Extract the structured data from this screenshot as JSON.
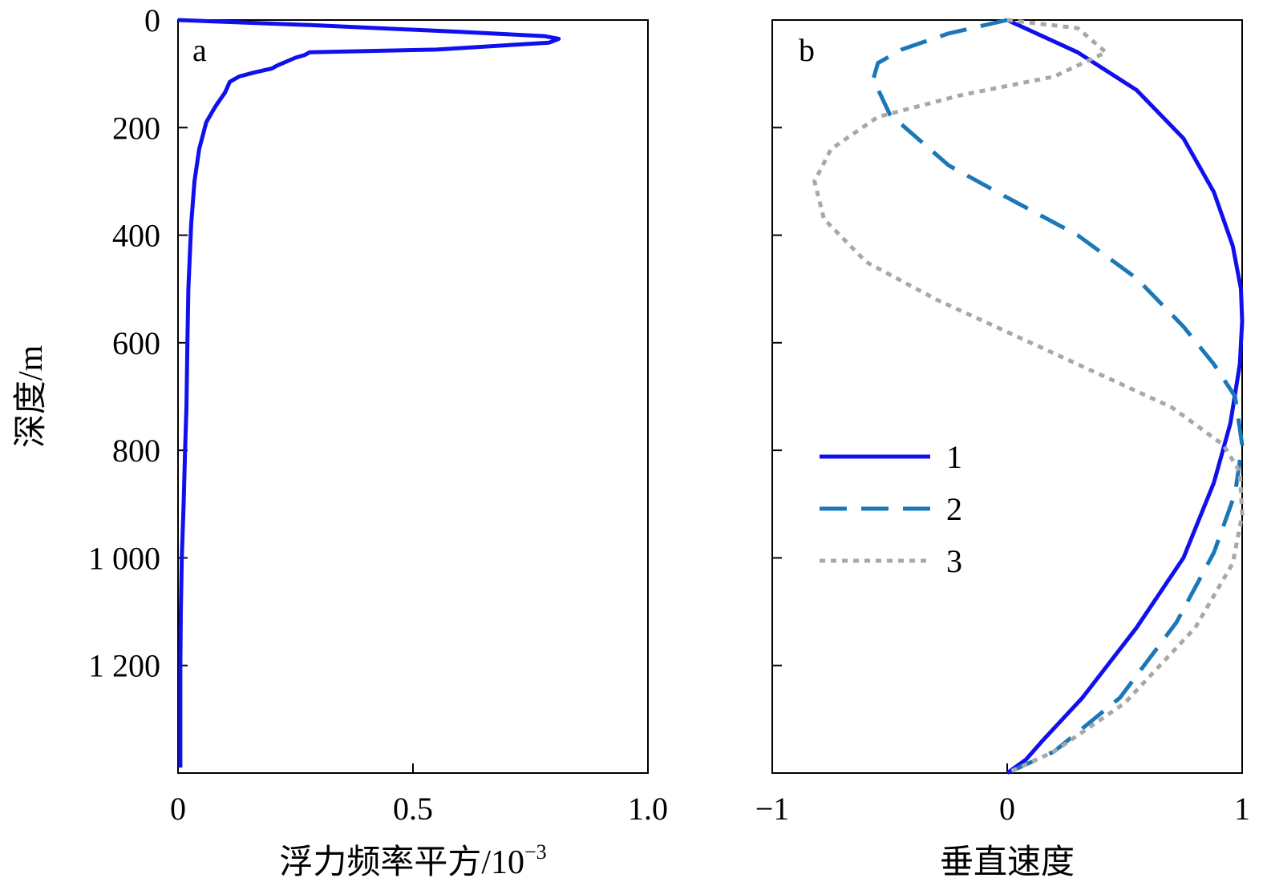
{
  "chart_data": [
    {
      "type": "line",
      "panel_label": "a",
      "ylabel": "深度/m",
      "xlabel": "浮力频率平方/10",
      "xlabel_exponent": "−3",
      "xlim": [
        0,
        1.0
      ],
      "ylim": [
        1400,
        0
      ],
      "y_inverted": true,
      "xticks": [
        0,
        0.5,
        1.0
      ],
      "xtick_labels": [
        "0",
        "0.5",
        "1.0"
      ],
      "yticks": [
        0,
        200,
        400,
        600,
        800,
        1000,
        1200
      ],
      "ytick_labels": [
        "0",
        "200",
        "400",
        "600",
        "800",
        "1 000",
        "1 200"
      ],
      "grid": false,
      "color": "#1010ee",
      "series": [
        {
          "x": [
            0.0,
            0.3,
            0.6,
            0.78,
            0.81,
            0.79,
            0.55,
            0.28,
            0.27,
            0.25,
            0.21,
            0.2,
            0.16,
            0.13,
            0.11,
            0.1,
            0.08,
            0.06,
            0.045,
            0.035,
            0.028,
            0.022,
            0.02,
            0.018,
            0.015,
            0.012,
            0.008,
            0.006,
            0.005,
            0.005
          ],
          "y": [
            0,
            10,
            22,
            30,
            35,
            42,
            55,
            60,
            65,
            70,
            85,
            90,
            98,
            105,
            115,
            135,
            160,
            190,
            240,
            300,
            380,
            500,
            600,
            720,
            800,
            900,
            1000,
            1100,
            1200,
            1390
          ]
        }
      ]
    },
    {
      "type": "line",
      "panel_label": "b",
      "xlabel": "垂直速度",
      "xlim": [
        -1,
        1
      ],
      "ylim": [
        1400,
        0
      ],
      "y_inverted": true,
      "xticks": [
        -1,
        0,
        1
      ],
      "xtick_labels": [
        "−1",
        "0",
        "1"
      ],
      "yticks": [
        0,
        200,
        400,
        600,
        800,
        1000,
        1200
      ],
      "grid": false,
      "legend_position": "center-left",
      "series": [
        {
          "name": "1",
          "color": "#1010ee",
          "style": "solid",
          "x": [
            0.0,
            0.3,
            0.55,
            0.75,
            0.88,
            0.96,
            0.995,
            1.0,
            0.99,
            0.95,
            0.88,
            0.75,
            0.55,
            0.32,
            0.15,
            0.08,
            0.0
          ],
          "y": [
            0,
            60,
            130,
            220,
            320,
            420,
            500,
            560,
            640,
            750,
            860,
            1000,
            1130,
            1260,
            1340,
            1375,
            1400
          ]
        },
        {
          "name": "2",
          "color": "#1a78b8",
          "style": "dashed",
          "x": [
            0.0,
            -0.25,
            -0.45,
            -0.55,
            -0.57,
            -0.5,
            -0.25,
            0.0,
            0.3,
            0.55,
            0.75,
            0.88,
            0.97,
            1.0,
            0.97,
            0.88,
            0.72,
            0.48,
            0.2,
            0.0
          ],
          "y": [
            0,
            25,
            55,
            80,
            110,
            175,
            270,
            330,
            400,
            480,
            570,
            640,
            700,
            790,
            880,
            990,
            1120,
            1260,
            1360,
            1400
          ]
        },
        {
          "name": "3",
          "color": "#a8a8a8",
          "style": "dotted",
          "x": [
            0.0,
            0.3,
            0.42,
            0.2,
            -0.2,
            -0.55,
            -0.75,
            -0.82,
            -0.78,
            -0.6,
            -0.3,
            0.0,
            0.35,
            0.7,
            0.92,
            0.99,
            1.0,
            0.96,
            0.8,
            0.5,
            0.2,
            0.0
          ],
          "y": [
            0,
            15,
            60,
            105,
            140,
            180,
            240,
            300,
            370,
            450,
            520,
            580,
            650,
            720,
            790,
            840,
            920,
            1010,
            1130,
            1270,
            1360,
            1400
          ]
        }
      ]
    }
  ]
}
